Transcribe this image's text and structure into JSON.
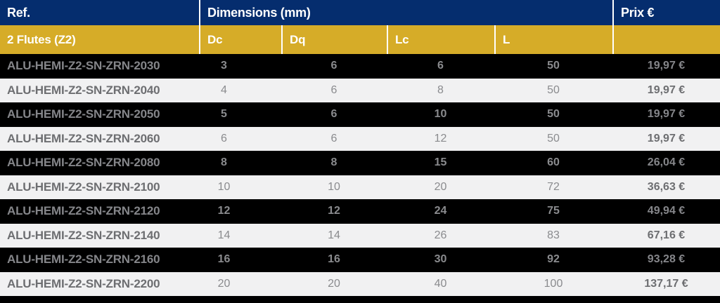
{
  "header": {
    "ref": "Ref.",
    "dimensions": "Dimensions (mm)",
    "price": "Prix €"
  },
  "subheader": {
    "flutes": "2 Flutes (Z2)",
    "dc": "Dc",
    "dq": "Dq",
    "lc": "Lc",
    "l": "L"
  },
  "rows": [
    {
      "ref": "ALU-HEMI-Z2-SN-ZRN-2030",
      "dc": "3",
      "dq": "6",
      "lc": "6",
      "l": "50",
      "price": "19,97 €"
    },
    {
      "ref": "ALU-HEMI-Z2-SN-ZRN-2040",
      "dc": "4",
      "dq": "6",
      "lc": "8",
      "l": "50",
      "price": "19,97 €"
    },
    {
      "ref": "ALU-HEMI-Z2-SN-ZRN-2050",
      "dc": "5",
      "dq": "6",
      "lc": "10",
      "l": "50",
      "price": "19,97 €"
    },
    {
      "ref": "ALU-HEMI-Z2-SN-ZRN-2060",
      "dc": "6",
      "dq": "6",
      "lc": "12",
      "l": "50",
      "price": "19,97 €"
    },
    {
      "ref": "ALU-HEMI-Z2-SN-ZRN-2080",
      "dc": "8",
      "dq": "8",
      "lc": "15",
      "l": "60",
      "price": "26,04 €"
    },
    {
      "ref": "ALU-HEMI-Z2-SN-ZRN-2100",
      "dc": "10",
      "dq": "10",
      "lc": "20",
      "l": "72",
      "price": "36,63 €"
    },
    {
      "ref": "ALU-HEMI-Z2-SN-ZRN-2120",
      "dc": "12",
      "dq": "12",
      "lc": "24",
      "l": "75",
      "price": "49,94 €"
    },
    {
      "ref": "ALU-HEMI-Z2-SN-ZRN-2140",
      "dc": "14",
      "dq": "14",
      "lc": "26",
      "l": "83",
      "price": "67,16 €"
    },
    {
      "ref": "ALU-HEMI-Z2-SN-ZRN-2160",
      "dc": "16",
      "dq": "16",
      "lc": "30",
      "l": "92",
      "price": "93,28 €"
    },
    {
      "ref": "ALU-HEMI-Z2-SN-ZRN-2200",
      "dc": "20",
      "dq": "20",
      "lc": "40",
      "l": "100",
      "price": "137,17 €"
    }
  ],
  "colors": {
    "header_navy": "#052d6e",
    "subheader_gold": "#d6ac28",
    "row_dark": "#000000",
    "row_light": "#f1f1f2",
    "text_bold_gray": "#6d6e71",
    "text_number_gray": "#8a8b8e",
    "separator_white": "#ffffff"
  },
  "chart_data": {
    "type": "table",
    "title": "",
    "column_groups": [
      {
        "label": "Ref."
      },
      {
        "label": "Dimensions (mm)",
        "subcolumns": [
          "Dc",
          "Dq",
          "Lc",
          "L"
        ]
      },
      {
        "label": "Prix €"
      }
    ],
    "row_group_label": "2 Flutes (Z2)",
    "columns": [
      "Ref.",
      "Dc",
      "Dq",
      "Lc",
      "L",
      "Prix €"
    ],
    "rows": [
      [
        "ALU-HEMI-Z2-SN-ZRN-2030",
        3,
        6,
        6,
        50,
        "19,97 €"
      ],
      [
        "ALU-HEMI-Z2-SN-ZRN-2040",
        4,
        6,
        8,
        50,
        "19,97 €"
      ],
      [
        "ALU-HEMI-Z2-SN-ZRN-2050",
        5,
        6,
        10,
        50,
        "19,97 €"
      ],
      [
        "ALU-HEMI-Z2-SN-ZRN-2060",
        6,
        6,
        12,
        50,
        "19,97 €"
      ],
      [
        "ALU-HEMI-Z2-SN-ZRN-2080",
        8,
        8,
        15,
        60,
        "26,04 €"
      ],
      [
        "ALU-HEMI-Z2-SN-ZRN-2100",
        10,
        10,
        20,
        72,
        "36,63 €"
      ],
      [
        "ALU-HEMI-Z2-SN-ZRN-2120",
        12,
        12,
        24,
        75,
        "49,94 €"
      ],
      [
        "ALU-HEMI-Z2-SN-ZRN-2140",
        14,
        14,
        26,
        83,
        "67,16 €"
      ],
      [
        "ALU-HEMI-Z2-SN-ZRN-2160",
        16,
        16,
        30,
        92,
        "93,28 €"
      ],
      [
        "ALU-HEMI-Z2-SN-ZRN-2200",
        20,
        20,
        40,
        100,
        "137,17 €"
      ]
    ]
  }
}
